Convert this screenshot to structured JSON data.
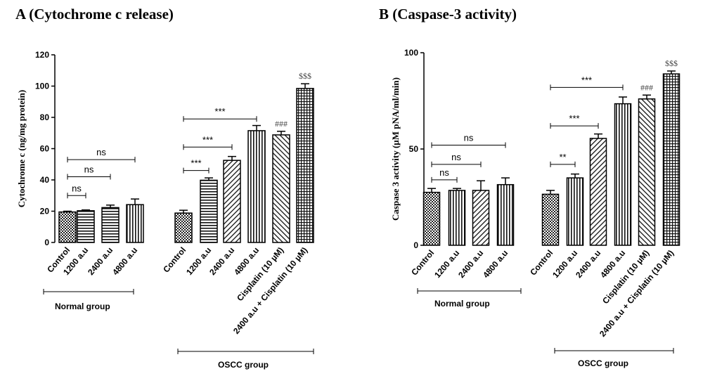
{
  "chart_data": [
    {
      "type": "bar",
      "title": "A (Cytochrome c release)",
      "ylabel": "Cytochrome c (ng/mg protein)",
      "ylim": [
        0,
        120
      ],
      "yticks": [
        0,
        20,
        40,
        60,
        80,
        100,
        120
      ],
      "groups": [
        "Normal group",
        "OSCC group"
      ],
      "categories": [
        "Control",
        "1200 a.u",
        "2400 a.u",
        "4800 a.u",
        "Control",
        "1200 a.u",
        "2400 a.u",
        "4800 a.u",
        "Cisplatin (10 µM)",
        "2400 a.u + Cisplatin (10 µM)"
      ],
      "bar_group": [
        0,
        0,
        0,
        0,
        1,
        1,
        1,
        1,
        1,
        1
      ],
      "values": [
        19.5,
        20.3,
        22.3,
        24.2,
        18.8,
        39.8,
        52.5,
        71.5,
        68.8,
        98.5
      ],
      "errors": [
        0.5,
        0.5,
        1.6,
        3.6,
        1.8,
        1.5,
        2.5,
        3.3,
        2.3,
        3.0
      ],
      "patterns": [
        "checker",
        "hstripe",
        "hstripe",
        "vstripe",
        "checker",
        "hstripe",
        "diag-back",
        "vstripe",
        "diag-fwd",
        "grid"
      ],
      "annotations": [
        {
          "label": "ns",
          "from": 0,
          "to": 1,
          "y": 30
        },
        {
          "label": "ns",
          "from": 0,
          "to": 2,
          "y": 42
        },
        {
          "label": "ns",
          "from": 0,
          "to": 3,
          "y": 53
        },
        {
          "label": "***",
          "from": 4,
          "to": 5,
          "y": 46
        },
        {
          "label": "***",
          "from": 4,
          "to": 6,
          "y": 61
        },
        {
          "label": "***",
          "from": 4,
          "to": 7,
          "y": 79
        }
      ],
      "bar_marks": [
        {
          "bar": 8,
          "label": "###"
        },
        {
          "bar": 9,
          "label": "$$$"
        }
      ]
    },
    {
      "type": "bar",
      "title": "B (Caspase-3 activity)",
      "ylabel": "Caspase 3 activity (µM pNA/ml/min)",
      "ylim": [
        0,
        100
      ],
      "yticks": [
        0,
        50,
        100
      ],
      "groups": [
        "Normal group",
        "OSCC group"
      ],
      "categories": [
        "Control",
        "1200 a.u",
        "2400 a.u",
        "4800 a.u",
        "Control",
        "1200 a.u",
        "2400 a.u",
        "4800 a.u",
        "Cisplatin (10 µM)",
        "2400 a.u + Cisplatin (10 µM)"
      ],
      "bar_group": [
        0,
        0,
        0,
        0,
        1,
        1,
        1,
        1,
        1,
        1
      ],
      "values": [
        27.5,
        28.5,
        28.5,
        31.5,
        26.5,
        35.0,
        55.5,
        73.5,
        76.0,
        89.0
      ],
      "errors": [
        2.0,
        1.0,
        5.0,
        3.5,
        2.0,
        2.0,
        2.3,
        3.5,
        2.0,
        1.5
      ],
      "patterns": [
        "checker",
        "vstripe",
        "diag-back",
        "vstripe",
        "checker",
        "vstripe",
        "diag-back",
        "vstripe",
        "diag-fwd",
        "grid"
      ],
      "annotations": [
        {
          "label": "ns",
          "from": 0,
          "to": 1,
          "y": 34
        },
        {
          "label": "ns",
          "from": 0,
          "to": 2,
          "y": 42
        },
        {
          "label": "ns",
          "from": 0,
          "to": 3,
          "y": 52
        },
        {
          "label": "**",
          "from": 4,
          "to": 5,
          "y": 42
        },
        {
          "label": "***",
          "from": 4,
          "to": 6,
          "y": 62
        },
        {
          "label": "***",
          "from": 4,
          "to": 7,
          "y": 82
        }
      ],
      "bar_marks": [
        {
          "bar": 8,
          "label": "###"
        },
        {
          "bar": 9,
          "label": "$$$"
        }
      ]
    }
  ]
}
